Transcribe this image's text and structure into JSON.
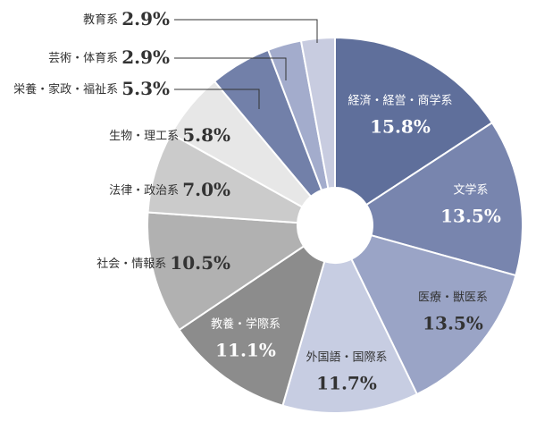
{
  "chart_data": {
    "type": "donut",
    "categories": [
      "経済・経営・商学系",
      "文学系",
      "医療・獣医系",
      "外国語・国際系",
      "教養・学際系",
      "社会・情報系",
      "法律・政治系",
      "生物・理工系",
      "栄養・家政・福祉系",
      "芸術・体育系",
      "教育系"
    ],
    "values": [
      15.8,
      13.5,
      13.5,
      11.7,
      11.1,
      10.5,
      7.0,
      5.8,
      5.3,
      2.9,
      2.9
    ],
    "value_labels": [
      "15.8%",
      "13.5%",
      "13.5%",
      "11.7%",
      "11.1%",
      "10.5%",
      "7.0%",
      "5.8%",
      "5.3%",
      "2.9%",
      "2.9%"
    ],
    "colors": [
      "#5f6f9b",
      "#7885ae",
      "#9aa4c6",
      "#c7cde2",
      "#8c8c8c",
      "#b1b1b1",
      "#cbcbcb",
      "#e7e7e7",
      "#7280a9",
      "#a3accc",
      "#c8cce0"
    ]
  }
}
